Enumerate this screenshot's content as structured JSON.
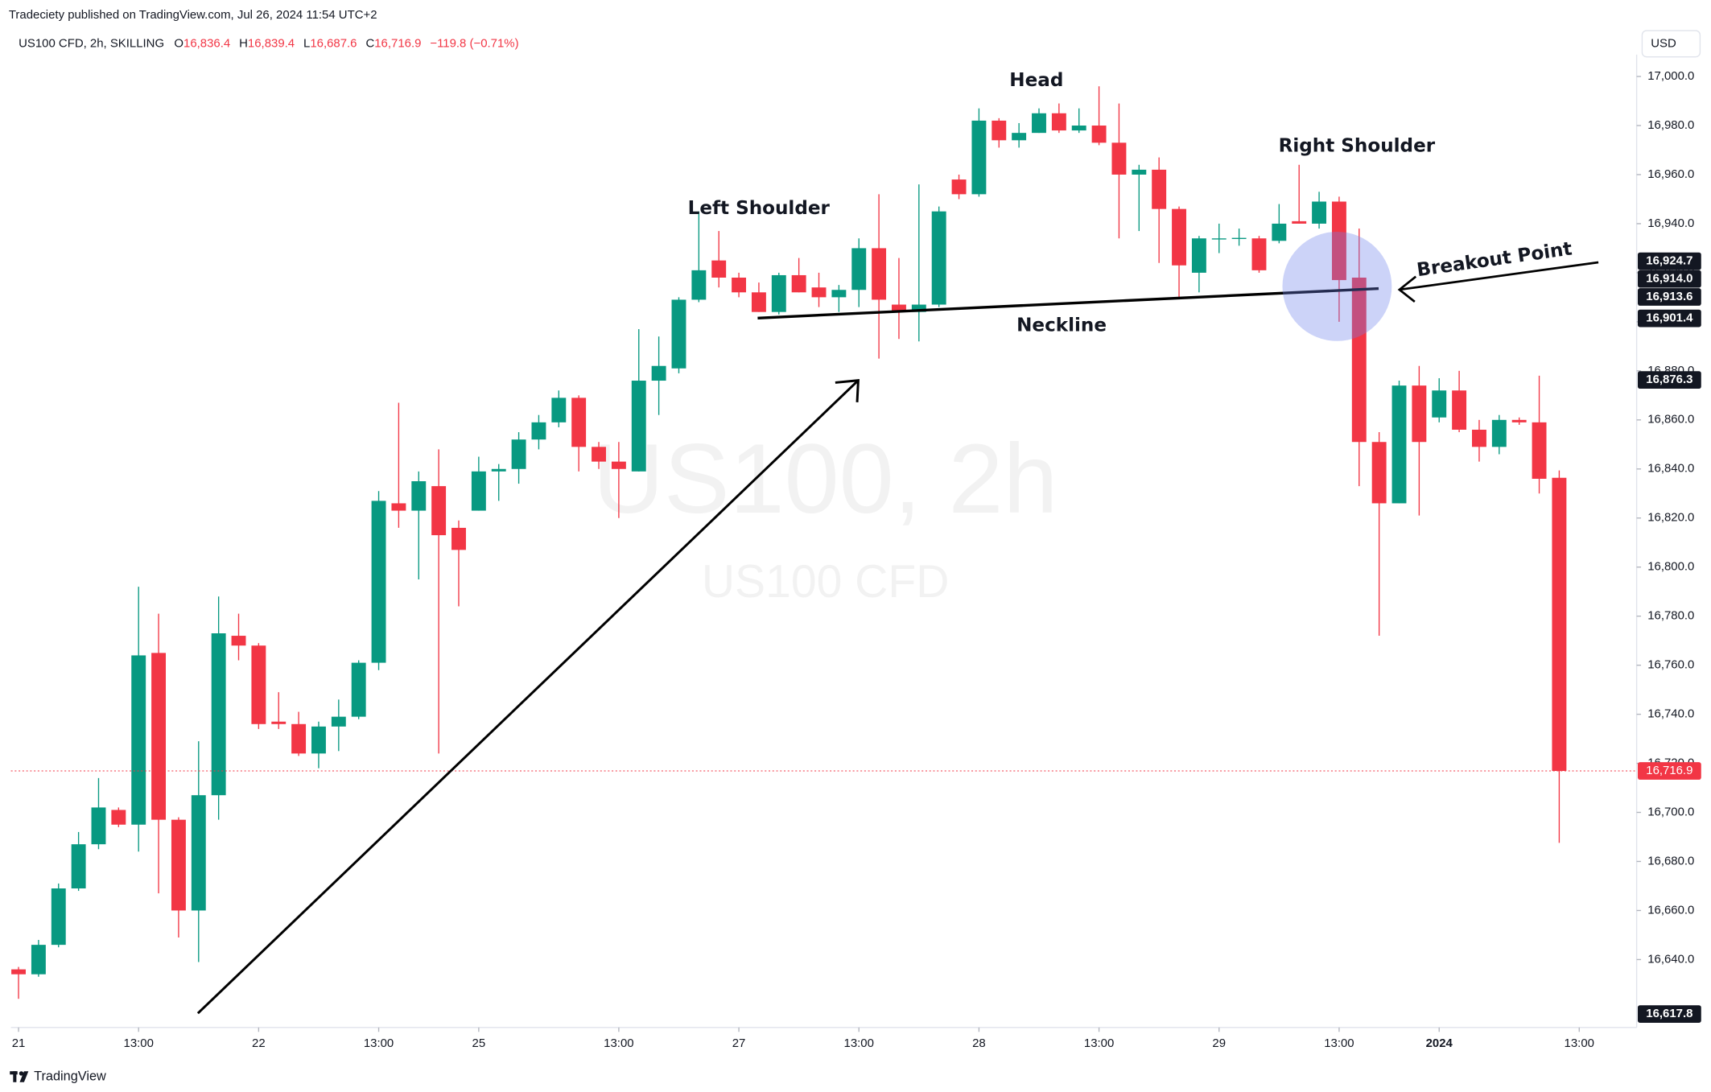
{
  "header": {
    "published": "Tradeciety published on TradingView.com, Jul 26, 2024 11:54 UTC+2",
    "symbol": "US100 CFD, 2h, SKILLING",
    "o_key": "O",
    "o_val": "16,836.4",
    "h_key": "H",
    "h_val": "16,839.4",
    "l_key": "L",
    "l_val": "16,687.6",
    "c_key": "C",
    "c_val": "16,716.9",
    "change": "−119.8 (−0.71%)",
    "currency": "USD"
  },
  "watermark": {
    "main": "US100, 2h",
    "sub": "US100 CFD"
  },
  "footer": {
    "brand": "TradingView"
  },
  "chart_data": {
    "type": "candlestick",
    "up_color": "#089981",
    "down_color": "#f23645",
    "open": [
      16636,
      16634,
      16646,
      16669,
      16687,
      16701,
      16695,
      16765,
      16697,
      16660,
      16707,
      16772,
      16768,
      16737,
      16736,
      16724,
      16735,
      16739,
      16761,
      16826,
      16823,
      16833,
      16816,
      16823,
      16839,
      16840,
      16852,
      16859,
      16869,
      16849,
      16843,
      16839,
      16876,
      16881,
      16909,
      16925,
      16918,
      16912,
      16904,
      16919,
      16914,
      16910,
      16913,
      16930,
      16907,
      16904,
      16907,
      16958,
      16952,
      16982,
      16974,
      16977,
      16985,
      16978,
      16980,
      16973,
      16960,
      16962,
      16946,
      16920,
      16934,
      16934,
      16934,
      16933,
      16941,
      16940,
      16949,
      16918,
      16851,
      16826,
      16874,
      16861,
      16872,
      16856,
      16849,
      16860,
      16859,
      16836.4
    ],
    "high": [
      16637,
      16648,
      16671,
      16692,
      16714,
      16702,
      16792,
      16781,
      16698,
      16729,
      16788,
      16781,
      16769,
      16749,
      16741,
      16737,
      16746,
      16762,
      16831,
      16867,
      16839,
      16848,
      16819,
      16845,
      16842,
      16855,
      16862,
      16872,
      16870,
      16851,
      16851,
      16897,
      16894,
      16910,
      16945,
      16937,
      16920,
      16916,
      16920,
      16926,
      16920,
      16915,
      16934,
      16952,
      16926,
      16956,
      16947,
      16960,
      16987,
      16983,
      16981,
      16987,
      16989,
      16987,
      16996,
      16989,
      16964,
      16967,
      16947,
      16935,
      16940,
      16938,
      16935,
      16948,
      16964,
      16953,
      16951,
      16938,
      16855,
      16876,
      16882,
      16877,
      16880,
      16860,
      16862,
      16861,
      16878,
      16839.4
    ],
    "low": [
      16624,
      16633,
      16645,
      16668,
      16685,
      16694,
      16684,
      16667,
      16649,
      16639,
      16697,
      16762,
      16734,
      16734,
      16723,
      16718,
      16725,
      16738,
      16758,
      16816,
      16795,
      16724,
      16784,
      16823,
      16827,
      16834,
      16848,
      16857,
      16839,
      16840,
      16820,
      16839,
      16862,
      16879,
      16908,
      16914,
      16910,
      16904,
      16903,
      16912,
      16906,
      16904,
      16906,
      16885,
      16893,
      16892,
      16906,
      16950,
      16951,
      16971,
      16971,
      16977,
      16977,
      16977,
      16972,
      16934,
      16937,
      16924,
      16910,
      16912,
      16928,
      16931,
      16920,
      16932,
      16940,
      16938,
      16900,
      16833,
      16772,
      16826,
      16821,
      16859,
      16855,
      16843,
      16846,
      16858,
      16830,
      16687.6
    ],
    "close": [
      16634,
      16646,
      16669,
      16687,
      16702,
      16695,
      16764,
      16697,
      16660,
      16707,
      16773,
      16768,
      16736,
      16736,
      16724,
      16735,
      16739,
      16761,
      16827,
      16823,
      16835,
      16813,
      16807,
      16839,
      16840,
      16852,
      16859,
      16869,
      16849,
      16843,
      16840,
      16876,
      16882,
      16909,
      16921,
      16918,
      16912,
      16904,
      16919,
      16912,
      16910,
      16913,
      16930,
      16909,
      16904,
      16907,
      16945,
      16952,
      16982,
      16974,
      16977,
      16985,
      16978,
      16980,
      16973,
      16960,
      16962,
      16946,
      16923,
      16934,
      16934,
      16934.2,
      16921,
      16940,
      16940,
      16949,
      16917,
      16851,
      16826,
      16874,
      16851,
      16872,
      16856,
      16849,
      16860,
      16859,
      16836,
      16716.9
    ],
    "xlim": [
      -0.38,
      80.87
    ],
    "xticks": [
      {
        "value": 0,
        "label": "21"
      },
      {
        "value": 6,
        "label": "13:00"
      },
      {
        "value": 12,
        "label": "22"
      },
      {
        "value": 18,
        "label": "13:00"
      },
      {
        "value": 23,
        "label": "25"
      },
      {
        "value": 30,
        "label": "13:00"
      },
      {
        "value": 36,
        "label": "27"
      },
      {
        "value": 42,
        "label": "13:00"
      },
      {
        "value": 48,
        "label": "28"
      },
      {
        "value": 54,
        "label": "13:00"
      },
      {
        "value": 60,
        "label": "29"
      },
      {
        "value": 66,
        "label": "13:00"
      },
      {
        "value": 71,
        "label": "2024"
      },
      {
        "value": 78,
        "label": "13:00"
      }
    ],
    "ylim": [
      16612.3,
      17008.9
    ],
    "yticks": [
      {
        "value": 16640,
        "label": "16,640.0"
      },
      {
        "value": 16660,
        "label": "16,660.0"
      },
      {
        "value": 16680,
        "label": "16,680.0"
      },
      {
        "value": 16700,
        "label": "16,700.0"
      },
      {
        "value": 16720,
        "label": "16,720.0"
      },
      {
        "value": 16740,
        "label": "16,740.0"
      },
      {
        "value": 16760,
        "label": "16,760.0"
      },
      {
        "value": 16780,
        "label": "16,780.0"
      },
      {
        "value": 16800,
        "label": "16,800.0"
      },
      {
        "value": 16820,
        "label": "16,820.0"
      },
      {
        "value": 16840,
        "label": "16,840.0"
      },
      {
        "value": 16860,
        "label": "16,860.0"
      },
      {
        "value": 16880,
        "label": "16,880.0"
      },
      {
        "value": 16900,
        "label": "16,900.0"
      },
      {
        "value": 16920,
        "label": "16,920.0"
      },
      {
        "value": 16940,
        "label": "16,940.0"
      },
      {
        "value": 16960,
        "label": "16,960.0"
      },
      {
        "value": 16980,
        "label": "16,980.0"
      },
      {
        "value": 17000,
        "label": "17,000.0"
      }
    ],
    "grid": false,
    "price_labels": [
      {
        "value": 16924.7,
        "label": "16,924.7"
      },
      {
        "value": 16914.0,
        "label": "16,914.0"
      },
      {
        "value": 16913.6,
        "label": "16,913.6"
      },
      {
        "value": 16901.4,
        "label": "16,901.4"
      },
      {
        "value": 16876.3,
        "label": "16,876.3"
      },
      {
        "value": 16617.8,
        "label": "16,617.8"
      }
    ],
    "last_price": {
      "value": 16716.9,
      "label": "16,716.9"
    },
    "annotations": {
      "head": "Head",
      "left_shoulder": "Left Shoulder",
      "right_shoulder": "Right Shoulder",
      "neckline": "Neckline",
      "breakout": "Breakout Point"
    }
  }
}
